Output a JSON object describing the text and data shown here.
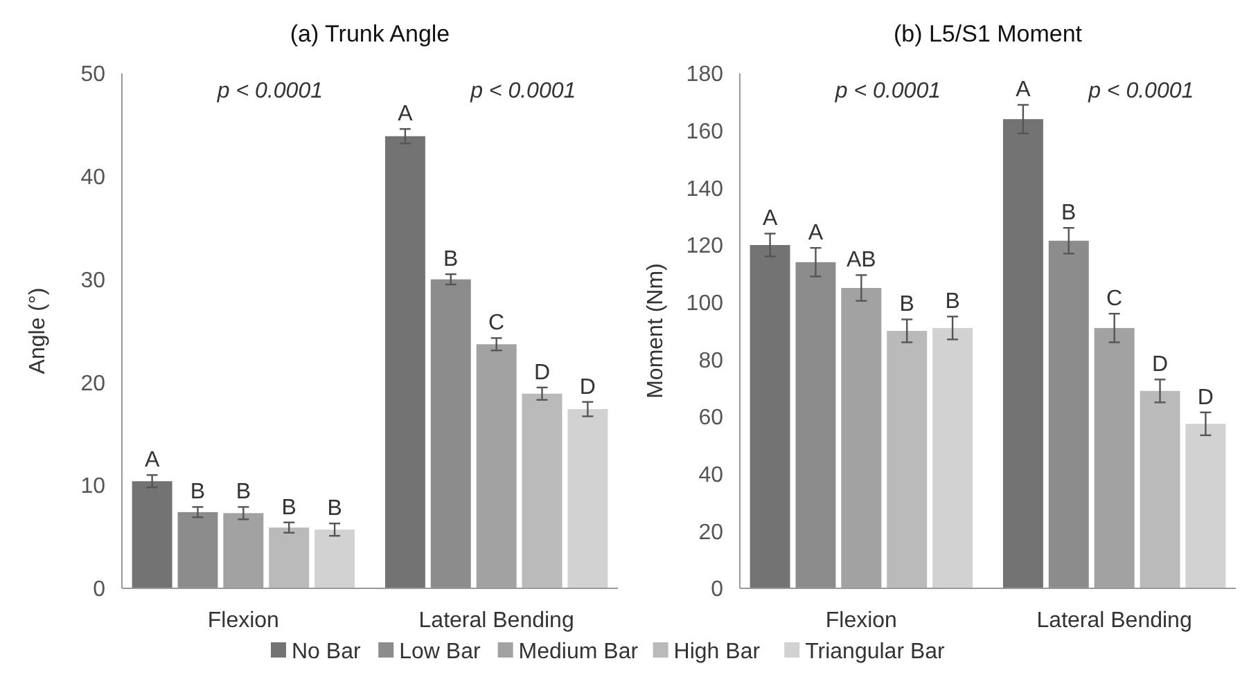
{
  "chart_data": [
    {
      "type": "bar",
      "title": "(a) Trunk Angle",
      "ylabel": "Angle (°)",
      "categories": [
        "Flexion",
        "Lateral Bending"
      ],
      "ylim": [
        0,
        50
      ],
      "yticks": [
        0,
        10,
        20,
        30,
        40,
        50
      ],
      "legend": "bottom",
      "annotations": [
        "p < 0.0001",
        "p < 0.0001"
      ],
      "series": [
        {
          "name": "No Bar",
          "color": "#737373",
          "values": [
            10.4,
            43.9
          ],
          "errors": [
            0.6,
            0.7
          ],
          "value_labels": [
            "A",
            "A"
          ]
        },
        {
          "name": "Low Bar",
          "color": "#8c8c8c",
          "values": [
            7.4,
            30.0
          ],
          "errors": [
            0.5,
            0.5
          ],
          "value_labels": [
            "B",
            "B"
          ]
        },
        {
          "name": "Medium Bar",
          "color": "#a2a2a2",
          "values": [
            7.3,
            23.7
          ],
          "errors": [
            0.6,
            0.6
          ],
          "value_labels": [
            "B",
            "C"
          ]
        },
        {
          "name": "High Bar",
          "color": "#bababa",
          "values": [
            5.9,
            18.9
          ],
          "errors": [
            0.5,
            0.6
          ],
          "value_labels": [
            "B",
            "D"
          ]
        },
        {
          "name": "Triangular Bar",
          "color": "#d2d2d2",
          "values": [
            5.7,
            17.4
          ],
          "errors": [
            0.6,
            0.7
          ],
          "value_labels": [
            "B",
            "D"
          ]
        }
      ]
    },
    {
      "type": "bar",
      "title": "(b) L5/S1 Moment",
      "ylabel": "Moment (Nm)",
      "categories": [
        "Flexion",
        "Lateral Bending"
      ],
      "ylim": [
        0,
        180
      ],
      "yticks": [
        0,
        20,
        40,
        60,
        80,
        100,
        120,
        140,
        160,
        180
      ],
      "annotations": [
        "p < 0.0001",
        "p < 0.0001"
      ],
      "series": [
        {
          "color": "#737373",
          "values": [
            120,
            164
          ],
          "errors": [
            4,
            5
          ],
          "value_labels": [
            "A",
            "A"
          ]
        },
        {
          "color": "#8c8c8c",
          "values": [
            114,
            121.5
          ],
          "errors": [
            5,
            4.5
          ],
          "value_labels": [
            "A",
            "B"
          ]
        },
        {
          "color": "#a2a2a2",
          "values": [
            105,
            91
          ],
          "errors": [
            4.5,
            5
          ],
          "value_labels": [
            "AB",
            "C"
          ]
        },
        {
          "color": "#bababa",
          "values": [
            90,
            69
          ],
          "errors": [
            4,
            4
          ],
          "value_labels": [
            "B",
            "D"
          ]
        },
        {
          "color": "#d2d2d2",
          "values": [
            91,
            57.5
          ],
          "errors": [
            4,
            4
          ],
          "value_labels": [
            "B",
            "D"
          ]
        }
      ]
    }
  ]
}
